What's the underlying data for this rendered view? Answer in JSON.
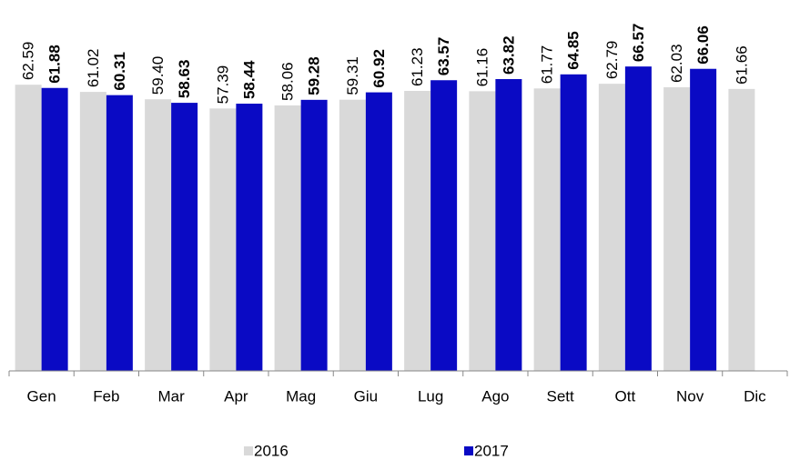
{
  "chart_data": {
    "type": "bar",
    "categories": [
      "Gen",
      "Feb",
      "Mar",
      "Apr",
      "Mag",
      "Giu",
      "Lug",
      "Ago",
      "Sett",
      "Ott",
      "Nov",
      "Dic"
    ],
    "series": [
      {
        "name": "2016",
        "color": "#d9d9d9",
        "values": [
          62.59,
          61.02,
          59.4,
          57.39,
          58.06,
          59.31,
          61.23,
          61.16,
          61.77,
          62.79,
          62.03,
          61.66
        ],
        "value_labels": [
          "62.59",
          "61.02",
          "59.40",
          "57.39",
          "58.06",
          "59.31",
          "61.23",
          "61.16",
          "61.77",
          "62.79",
          "62.03",
          "61.66"
        ]
      },
      {
        "name": "2017",
        "color": "#0a0ac4",
        "values": [
          61.88,
          60.31,
          58.63,
          58.44,
          59.28,
          60.92,
          63.57,
          63.82,
          64.85,
          66.57,
          66.06,
          null
        ],
        "value_labels": [
          "61.88",
          "60.31",
          "58.63",
          "58.44",
          "59.28",
          "60.92",
          "63.57",
          "63.82",
          "64.85",
          "66.57",
          "66.06",
          null
        ]
      }
    ],
    "ylim": [
      0,
      80
    ],
    "legend": "bottom"
  }
}
